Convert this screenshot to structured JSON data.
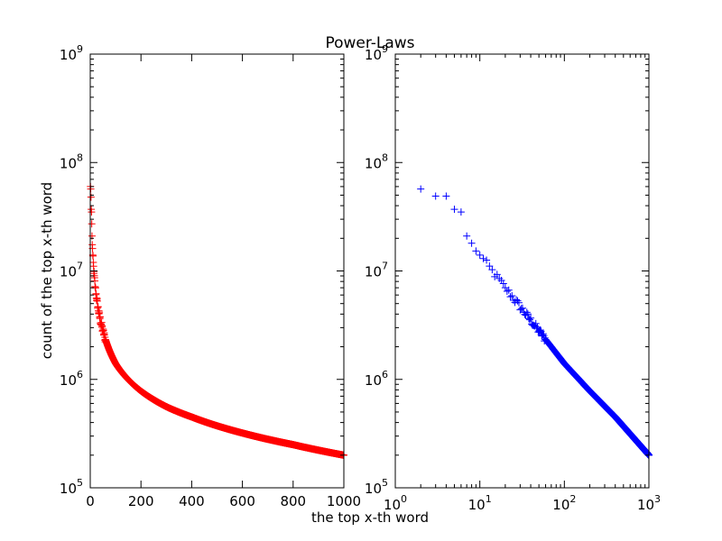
{
  "figure": {
    "title": "Power-Laws",
    "xlabel": "the top x-th word"
  },
  "chart_data": [
    {
      "type": "scatter",
      "panel": "left",
      "xscale": "linear",
      "yscale": "log",
      "xlim": [
        0,
        1000
      ],
      "ylim": [
        100000,
        1000000000
      ],
      "ylabel": "count of the top x-th word",
      "grid": false,
      "marker": "+",
      "color": "#ff0000",
      "x_ticks": [
        {
          "value": 0,
          "label": "0"
        },
        {
          "value": 200,
          "label": "200"
        },
        {
          "value": 400,
          "label": "400"
        },
        {
          "value": 600,
          "label": "600"
        },
        {
          "value": 800,
          "label": "800"
        },
        {
          "value": 1000,
          "label": "1000"
        }
      ],
      "y_ticks": [
        {
          "value": 100000,
          "base": "10",
          "exp": "5"
        },
        {
          "value": 1000000,
          "base": "10",
          "exp": "6"
        },
        {
          "value": 10000000,
          "base": "10",
          "exp": "7"
        },
        {
          "value": 100000000,
          "base": "10",
          "exp": "8"
        },
        {
          "value": 1000000000,
          "base": "10",
          "exp": "9"
        }
      ],
      "series_shape": "power-law",
      "exponent": 1.05,
      "x_range": [
        1,
        1000
      ],
      "anchors": [
        {
          "x": 1,
          "y": 60000000
        },
        {
          "x": 2,
          "y": 57000000
        },
        {
          "x": 3,
          "y": 48000000
        },
        {
          "x": 4,
          "y": 37000000
        },
        {
          "x": 5,
          "y": 35000000
        },
        {
          "x": 7,
          "y": 21000000
        },
        {
          "x": 10,
          "y": 14000000
        },
        {
          "x": 20,
          "y": 7000000
        },
        {
          "x": 50,
          "y": 2800000
        },
        {
          "x": 100,
          "y": 1400000
        },
        {
          "x": 200,
          "y": 780000
        },
        {
          "x": 300,
          "y": 560000
        },
        {
          "x": 400,
          "y": 450000
        },
        {
          "x": 600,
          "y": 320000
        },
        {
          "x": 800,
          "y": 250000
        },
        {
          "x": 1000,
          "y": 200000
        }
      ]
    },
    {
      "type": "scatter",
      "panel": "right",
      "xscale": "log",
      "yscale": "log",
      "xlim": [
        1,
        1000
      ],
      "ylim": [
        100000,
        1000000000
      ],
      "grid": false,
      "marker": "+",
      "color": "#0000ff",
      "x_ticks": [
        {
          "value": 1,
          "base": "10",
          "exp": "0"
        },
        {
          "value": 10,
          "base": "10",
          "exp": "1"
        },
        {
          "value": 100,
          "base": "10",
          "exp": "2"
        },
        {
          "value": 1000,
          "base": "10",
          "exp": "3"
        }
      ],
      "y_ticks": [
        {
          "value": 100000,
          "base": "10",
          "exp": "5"
        },
        {
          "value": 1000000,
          "base": "10",
          "exp": "6"
        },
        {
          "value": 10000000,
          "base": "10",
          "exp": "7"
        },
        {
          "value": 100000000,
          "base": "10",
          "exp": "8"
        },
        {
          "value": 1000000000,
          "base": "10",
          "exp": "9"
        }
      ],
      "series_shape": "power-law",
      "exponent": 1.05,
      "x_range": [
        1,
        1000
      ],
      "anchors": [
        {
          "x": 2,
          "y": 57000000
        },
        {
          "x": 3,
          "y": 49000000
        },
        {
          "x": 4,
          "y": 49000000
        },
        {
          "x": 5,
          "y": 37000000
        },
        {
          "x": 6,
          "y": 35000000
        },
        {
          "x": 7,
          "y": 21000000
        },
        {
          "x": 8,
          "y": 18000000
        },
        {
          "x": 10,
          "y": 14000000
        },
        {
          "x": 20,
          "y": 7000000
        },
        {
          "x": 50,
          "y": 2800000
        },
        {
          "x": 100,
          "y": 1400000
        },
        {
          "x": 200,
          "y": 780000
        },
        {
          "x": 400,
          "y": 450000
        },
        {
          "x": 1000,
          "y": 200000
        }
      ]
    }
  ]
}
